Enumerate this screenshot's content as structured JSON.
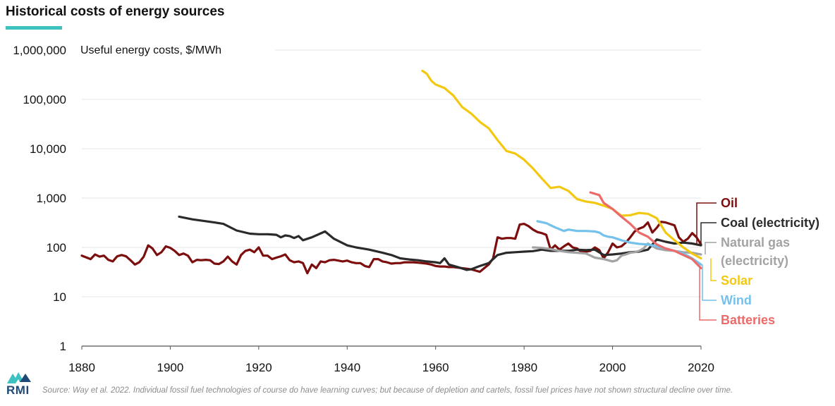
{
  "header": {
    "title": "Historical costs of energy sources"
  },
  "footer": {
    "source": "Source: Way et al. 2022. Individual fossil fuel technologies of course do have learning curves; but because of depletion and cartels, fossil fuel prices have not shown structural decline over time.",
    "logo": "RMI"
  },
  "colors": {
    "accent": "#3ec1c1",
    "logo": "#1f4a78"
  },
  "chart_data": {
    "type": "line",
    "title": "Historical costs of energy sources",
    "ylabel": "Useful energy costs, $/MWh",
    "xlabel": "",
    "yscale": "log",
    "xlim": [
      1880,
      2020
    ],
    "ylim": [
      1,
      1000000
    ],
    "x_ticks": [
      "1880",
      "1900",
      "1920",
      "1940",
      "1960",
      "1980",
      "2000",
      "2020"
    ],
    "y_ticks": [
      "1",
      "10",
      "100",
      "1,000",
      "10,000",
      "100,000",
      "1,000,000"
    ],
    "grid": true,
    "legend": "direct labels at right end of lines",
    "series": [
      {
        "name": "Oil",
        "label": "Oil",
        "color": "#7d0e0e",
        "points": [
          [
            1880,
            68
          ],
          [
            1882,
            58
          ],
          [
            1883,
            72
          ],
          [
            1884,
            65
          ],
          [
            1885,
            68
          ],
          [
            1886,
            56
          ],
          [
            1887,
            52
          ],
          [
            1888,
            66
          ],
          [
            1889,
            70
          ],
          [
            1890,
            66
          ],
          [
            1891,
            55
          ],
          [
            1892,
            45
          ],
          [
            1893,
            50
          ],
          [
            1894,
            65
          ],
          [
            1895,
            110
          ],
          [
            1896,
            95
          ],
          [
            1897,
            70
          ],
          [
            1898,
            80
          ],
          [
            1899,
            105
          ],
          [
            1900,
            98
          ],
          [
            1901,
            85
          ],
          [
            1902,
            70
          ],
          [
            1903,
            75
          ],
          [
            1904,
            68
          ],
          [
            1905,
            50
          ],
          [
            1906,
            56
          ],
          [
            1907,
            55
          ],
          [
            1908,
            56
          ],
          [
            1909,
            55
          ],
          [
            1910,
            47
          ],
          [
            1911,
            46
          ],
          [
            1912,
            52
          ],
          [
            1913,
            65
          ],
          [
            1914,
            52
          ],
          [
            1915,
            45
          ],
          [
            1916,
            70
          ],
          [
            1917,
            85
          ],
          [
            1918,
            90
          ],
          [
            1919,
            80
          ],
          [
            1920,
            100
          ],
          [
            1921,
            68
          ],
          [
            1922,
            68
          ],
          [
            1923,
            58
          ],
          [
            1924,
            62
          ],
          [
            1925,
            66
          ],
          [
            1926,
            72
          ],
          [
            1927,
            55
          ],
          [
            1928,
            50
          ],
          [
            1929,
            52
          ],
          [
            1930,
            48
          ],
          [
            1931,
            30
          ],
          [
            1932,
            45
          ],
          [
            1933,
            38
          ],
          [
            1934,
            52
          ],
          [
            1935,
            50
          ],
          [
            1936,
            55
          ],
          [
            1937,
            56
          ],
          [
            1938,
            54
          ],
          [
            1939,
            52
          ],
          [
            1940,
            54
          ],
          [
            1941,
            50
          ],
          [
            1942,
            48
          ],
          [
            1943,
            48
          ],
          [
            1944,
            42
          ],
          [
            1945,
            40
          ],
          [
            1946,
            58
          ],
          [
            1947,
            58
          ],
          [
            1948,
            52
          ],
          [
            1949,
            50
          ],
          [
            1950,
            47
          ],
          [
            1951,
            48
          ],
          [
            1952,
            48
          ],
          [
            1953,
            50
          ],
          [
            1954,
            50
          ],
          [
            1955,
            50
          ],
          [
            1956,
            49
          ],
          [
            1957,
            48
          ],
          [
            1958,
            47
          ],
          [
            1959,
            45
          ],
          [
            1960,
            42
          ],
          [
            1961,
            41
          ],
          [
            1962,
            41
          ],
          [
            1963,
            40
          ],
          [
            1964,
            40
          ],
          [
            1965,
            39
          ],
          [
            1966,
            38
          ],
          [
            1967,
            37
          ],
          [
            1968,
            36
          ],
          [
            1969,
            34
          ],
          [
            1970,
            32
          ],
          [
            1971,
            38
          ],
          [
            1972,
            45
          ],
          [
            1973,
            60
          ],
          [
            1974,
            160
          ],
          [
            1975,
            150
          ],
          [
            1976,
            155
          ],
          [
            1977,
            155
          ],
          [
            1978,
            150
          ],
          [
            1979,
            290
          ],
          [
            1980,
            300
          ],
          [
            1981,
            270
          ],
          [
            1982,
            230
          ],
          [
            1983,
            205
          ],
          [
            1984,
            195
          ],
          [
            1985,
            180
          ],
          [
            1986,
            90
          ],
          [
            1987,
            110
          ],
          [
            1988,
            90
          ],
          [
            1989,
            105
          ],
          [
            1990,
            120
          ],
          [
            1991,
            100
          ],
          [
            1992,
            95
          ],
          [
            1993,
            80
          ],
          [
            1994,
            82
          ],
          [
            1995,
            85
          ],
          [
            1996,
            100
          ],
          [
            1997,
            88
          ],
          [
            1998,
            60
          ],
          [
            1999,
            80
          ],
          [
            2000,
            120
          ],
          [
            2001,
            100
          ],
          [
            2002,
            105
          ],
          [
            2003,
            125
          ],
          [
            2004,
            160
          ],
          [
            2005,
            210
          ],
          [
            2006,
            240
          ],
          [
            2007,
            260
          ],
          [
            2008,
            320
          ],
          [
            2009,
            200
          ],
          [
            2010,
            250
          ],
          [
            2011,
            330
          ],
          [
            2012,
            320
          ],
          [
            2013,
            300
          ],
          [
            2014,
            280
          ],
          [
            2015,
            160
          ],
          [
            2016,
            130
          ],
          [
            2017,
            150
          ],
          [
            2018,
            195
          ],
          [
            2019,
            160
          ],
          [
            2020,
            115
          ]
        ]
      },
      {
        "name": "Coal (electricity)",
        "label": "Coal (electricity)",
        "color": "#2a2a2a",
        "points": [
          [
            1902,
            420
          ],
          [
            1905,
            370
          ],
          [
            1910,
            320
          ],
          [
            1912,
            300
          ],
          [
            1915,
            220
          ],
          [
            1918,
            190
          ],
          [
            1920,
            185
          ],
          [
            1922,
            185
          ],
          [
            1924,
            180
          ],
          [
            1925,
            160
          ],
          [
            1926,
            175
          ],
          [
            1927,
            170
          ],
          [
            1928,
            155
          ],
          [
            1929,
            170
          ],
          [
            1930,
            140
          ],
          [
            1932,
            160
          ],
          [
            1935,
            210
          ],
          [
            1937,
            150
          ],
          [
            1940,
            110
          ],
          [
            1942,
            100
          ],
          [
            1945,
            90
          ],
          [
            1948,
            78
          ],
          [
            1950,
            70
          ],
          [
            1952,
            60
          ],
          [
            1954,
            57
          ],
          [
            1956,
            55
          ],
          [
            1958,
            52
          ],
          [
            1960,
            50
          ],
          [
            1961,
            48
          ],
          [
            1962,
            60
          ],
          [
            1963,
            45
          ],
          [
            1965,
            40
          ],
          [
            1967,
            35
          ],
          [
            1968,
            36
          ],
          [
            1970,
            42
          ],
          [
            1972,
            48
          ],
          [
            1974,
            70
          ],
          [
            1976,
            78
          ],
          [
            1978,
            80
          ],
          [
            1980,
            82
          ],
          [
            1982,
            84
          ],
          [
            1984,
            90
          ],
          [
            1986,
            85
          ],
          [
            1988,
            85
          ],
          [
            1990,
            85
          ],
          [
            1992,
            90
          ],
          [
            1994,
            88
          ],
          [
            1996,
            90
          ],
          [
            1998,
            70
          ],
          [
            2000,
            72
          ],
          [
            2002,
            75
          ],
          [
            2004,
            80
          ],
          [
            2006,
            82
          ],
          [
            2008,
            90
          ],
          [
            2010,
            145
          ],
          [
            2012,
            130
          ],
          [
            2014,
            120
          ],
          [
            2016,
            125
          ],
          [
            2018,
            120
          ],
          [
            2020,
            110
          ]
        ]
      },
      {
        "name": "Natural gas (electricity)",
        "label": "Natural gas",
        "label2": "(electricity)",
        "color": "#a3a3a3",
        "points": [
          [
            1982,
            100
          ],
          [
            1984,
            98
          ],
          [
            1986,
            92
          ],
          [
            1988,
            85
          ],
          [
            1990,
            80
          ],
          [
            1992,
            78
          ],
          [
            1994,
            75
          ],
          [
            1996,
            62
          ],
          [
            1998,
            58
          ],
          [
            2000,
            52
          ],
          [
            2001,
            55
          ],
          [
            2002,
            68
          ],
          [
            2003,
            72
          ],
          [
            2004,
            78
          ],
          [
            2005,
            80
          ],
          [
            2006,
            85
          ],
          [
            2007,
            95
          ],
          [
            2008,
            120
          ],
          [
            2010,
            95
          ],
          [
            2012,
            88
          ],
          [
            2014,
            85
          ],
          [
            2016,
            80
          ],
          [
            2018,
            78
          ],
          [
            2020,
            72
          ]
        ]
      },
      {
        "name": "Solar",
        "label": "Solar",
        "color": "#f2c811",
        "points": [
          [
            1957,
            380000
          ],
          [
            1958,
            330000
          ],
          [
            1959,
            240000
          ],
          [
            1960,
            200000
          ],
          [
            1962,
            170000
          ],
          [
            1964,
            120000
          ],
          [
            1966,
            70000
          ],
          [
            1968,
            52000
          ],
          [
            1970,
            35000
          ],
          [
            1972,
            26000
          ],
          [
            1974,
            15000
          ],
          [
            1976,
            9000
          ],
          [
            1978,
            8000
          ],
          [
            1980,
            6000
          ],
          [
            1982,
            4000
          ],
          [
            1984,
            2500
          ],
          [
            1986,
            1600
          ],
          [
            1988,
            1700
          ],
          [
            1990,
            1400
          ],
          [
            1992,
            950
          ],
          [
            1994,
            850
          ],
          [
            1996,
            800
          ],
          [
            1998,
            700
          ],
          [
            2000,
            600
          ],
          [
            2002,
            440
          ],
          [
            2004,
            450
          ],
          [
            2006,
            500
          ],
          [
            2008,
            480
          ],
          [
            2010,
            390
          ],
          [
            2012,
            200
          ],
          [
            2014,
            140
          ],
          [
            2016,
            100
          ],
          [
            2018,
            75
          ],
          [
            2020,
            60
          ]
        ]
      },
      {
        "name": "Wind",
        "label": "Wind",
        "color": "#74c1ec",
        "points": [
          [
            1983,
            340
          ],
          [
            1985,
            310
          ],
          [
            1987,
            255
          ],
          [
            1989,
            215
          ],
          [
            1990,
            230
          ],
          [
            1992,
            215
          ],
          [
            1994,
            215
          ],
          [
            1996,
            210
          ],
          [
            1997,
            200
          ],
          [
            1998,
            175
          ],
          [
            1999,
            165
          ],
          [
            2000,
            160
          ],
          [
            2002,
            140
          ],
          [
            2004,
            125
          ],
          [
            2006,
            118
          ],
          [
            2008,
            115
          ],
          [
            2010,
            105
          ],
          [
            2012,
            95
          ],
          [
            2014,
            85
          ],
          [
            2016,
            75
          ],
          [
            2018,
            60
          ],
          [
            2020,
            45
          ]
        ]
      },
      {
        "name": "Batteries",
        "label": "Batteries",
        "color": "#ec6a6a",
        "points": [
          [
            1995,
            1300
          ],
          [
            1997,
            1150
          ],
          [
            1998,
            800
          ],
          [
            2000,
            600
          ],
          [
            2002,
            420
          ],
          [
            2004,
            300
          ],
          [
            2006,
            200
          ],
          [
            2008,
            165
          ],
          [
            2010,
            115
          ],
          [
            2012,
            95
          ],
          [
            2014,
            85
          ],
          [
            2016,
            70
          ],
          [
            2018,
            58
          ],
          [
            2020,
            38
          ]
        ]
      }
    ]
  }
}
